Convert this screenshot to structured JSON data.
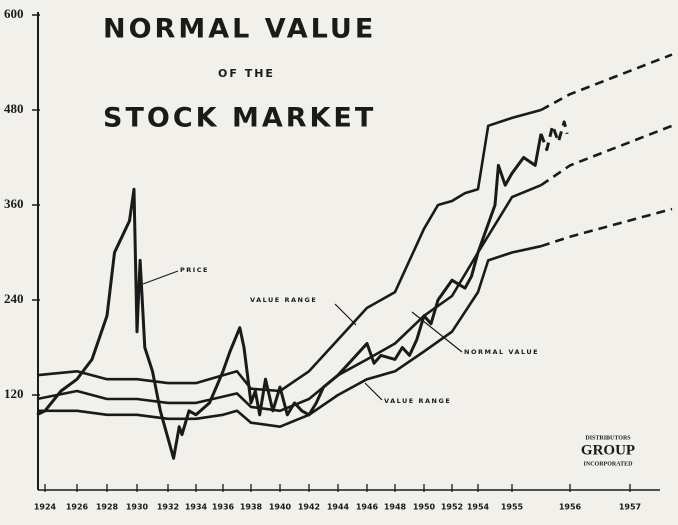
{
  "chart_data": {
    "type": "line",
    "title_lines": [
      "NORMAL VALUE",
      "OF THE",
      "STOCK MARKET"
    ],
    "annotations": [
      "PRICE",
      "VALUE RANGE",
      "NORMAL VALUE",
      "VALUE RANGE"
    ],
    "logo": [
      "DISTRIBUTORS",
      "GROUP",
      "INCORPORATED"
    ],
    "xlim": [
      1923.5,
      1957.7
    ],
    "xticks": [
      1924,
      1926,
      1928,
      1930,
      1932,
      1934,
      1936,
      1938,
      1940,
      1942,
      1944,
      1946,
      1948,
      1950,
      1952,
      1954,
      1955,
      1956,
      1957
    ],
    "ylim": [
      0,
      600
    ],
    "yticks": [
      120,
      240,
      360,
      480,
      600
    ],
    "projection_from": 1955.5,
    "series": [
      {
        "name": "PRICE",
        "color": "#1a1a1a",
        "x": [
          1923.5,
          1924,
          1925,
          1926,
          1927,
          1928,
          1928.5,
          1929,
          1929.5,
          1929.8,
          1930,
          1930.2,
          1930.5,
          1931,
          1931.5,
          1932.4,
          1932.8,
          1933,
          1933.5,
          1934,
          1935,
          1935.5,
          1936,
          1936.5,
          1937.2,
          1937.5,
          1938,
          1938.3,
          1938.6,
          1939,
          1939.5,
          1940,
          1940.5,
          1941,
          1941.5,
          1942,
          1942.5,
          1943,
          1944,
          1945,
          1946,
          1946.5,
          1947,
          1948,
          1948.5,
          1949,
          1949.5,
          1950,
          1950.5,
          1951,
          1952,
          1952.5,
          1953,
          1953.5,
          1954,
          1954.5,
          1954.6,
          1954.8,
          1955,
          1955.2,
          1955.4,
          1955.5,
          1955.6,
          1955.7,
          1955.8,
          1955.9,
          1955.95
        ],
        "values": [
          95,
          100,
          125,
          140,
          165,
          220,
          300,
          320,
          340,
          380,
          200,
          290,
          180,
          150,
          100,
          40,
          80,
          70,
          100,
          95,
          110,
          130,
          150,
          175,
          205,
          180,
          110,
          125,
          95,
          140,
          100,
          130,
          95,
          110,
          100,
          95,
          110,
          130,
          145,
          165,
          185,
          160,
          170,
          165,
          180,
          170,
          190,
          220,
          210,
          240,
          265,
          260,
          255,
          270,
          300,
          360,
          410,
          385,
          400,
          420,
          410,
          450,
          430,
          460,
          440,
          465,
          450
        ]
      },
      {
        "name": "NORMAL VALUE",
        "color": "#1a1a1a",
        "x": [
          1923.5,
          1926,
          1928,
          1930,
          1932,
          1934,
          1936,
          1937,
          1938,
          1940,
          1942,
          1944,
          1946,
          1948,
          1950,
          1952,
          1954,
          1955,
          1955.5,
          1956,
          1957.7
        ],
        "values": [
          115,
          125,
          115,
          115,
          110,
          110,
          118,
          122,
          105,
          100,
          115,
          145,
          165,
          185,
          220,
          245,
          300,
          370,
          385,
          410,
          460
        ]
      },
      {
        "name": "VALUE RANGE",
        "color": "#1a1a1a",
        "x": [
          1923.5,
          1926,
          1928,
          1930,
          1932,
          1934,
          1936,
          1937,
          1938,
          1940,
          1942,
          1944,
          1946,
          1948,
          1950,
          1951,
          1952,
          1953,
          1954,
          1954.3,
          1955,
          1955.5,
          1956,
          1957.7
        ],
        "values": [
          145,
          150,
          140,
          140,
          135,
          135,
          145,
          150,
          128,
          125,
          150,
          190,
          230,
          250,
          330,
          360,
          365,
          375,
          380,
          460,
          470,
          480,
          500,
          550
        ]
      },
      {
        "name": "VALUE RANGE",
        "color": "#1a1a1a",
        "x": [
          1923.5,
          1926,
          1928,
          1930,
          1932,
          1934,
          1936,
          1937,
          1938,
          1940,
          1942,
          1944,
          1946,
          1948,
          1950,
          1952,
          1954,
          1954.3,
          1955,
          1955.5,
          1956,
          1957.7
        ],
        "values": [
          100,
          100,
          95,
          95,
          90,
          90,
          95,
          100,
          85,
          80,
          95,
          120,
          140,
          150,
          175,
          200,
          250,
          290,
          300,
          308,
          320,
          355
        ]
      }
    ]
  }
}
